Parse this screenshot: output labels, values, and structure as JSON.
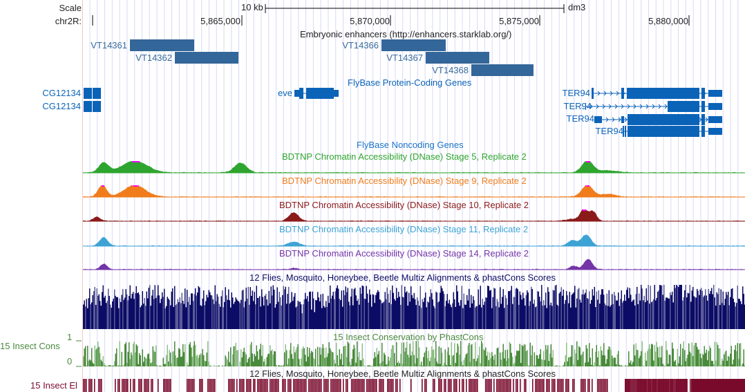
{
  "ruler": {
    "scale_label": "Scale",
    "scale_bar_text": "10 kb",
    "assembly": "dm3",
    "chrom_label": "chr2R:",
    "ticks": [
      "5,865,000",
      "5,870,000",
      "5,875,000",
      "5,880,000"
    ]
  },
  "tracks": {
    "enhancers": {
      "title": "Embryonic enhancers (http://enhancers.starklab.org/)",
      "color": "#336699",
      "items": [
        {
          "name": "VT14361",
          "start": 5861242,
          "end": 5863400
        },
        {
          "name": "VT14362",
          "start": 5862750,
          "end": 5864884
        },
        {
          "name": "VT14366",
          "start": 5869686,
          "end": 5871844
        },
        {
          "name": "VT14367",
          "start": 5871171,
          "end": 5873306
        },
        {
          "name": "VT14368",
          "start": 5872702,
          "end": 5874790
        }
      ]
    },
    "protein_coding": {
      "title": "FlyBase Protein-Coding Genes",
      "color": "#0b63b8",
      "genes": [
        {
          "name": "CG12134"
        },
        {
          "name": "CG12134"
        },
        {
          "name": "eve"
        },
        {
          "name": "TER94"
        },
        {
          "name": "TER94"
        },
        {
          "name": "TER94"
        },
        {
          "name": "TER94"
        }
      ]
    },
    "noncoding": {
      "title": "FlyBase Noncoding Genes",
      "color": "#1a73c9"
    },
    "dnase": [
      {
        "title": "BDTNP Chromatin Accessibility (DNase) Stage 5, Replicate 2",
        "color": "#2ea52e"
      },
      {
        "title": "BDTNP Chromatin Accessibility (DNase) Stage 9, Replicate 2",
        "color": "#f07c1c"
      },
      {
        "title": "BDTNP Chromatin Accessibility (DNase) Stage 10, Replicate 2",
        "color": "#8b1a1a"
      },
      {
        "title": "BDTNP Chromatin Accessibility (DNase) Stage 11, Replicate 2",
        "color": "#3da3d4"
      },
      {
        "title": "BDTNP Chromatin Accessibility (DNase) Stage 14, Replicate 2",
        "color": "#7434a8"
      }
    ],
    "multiz": {
      "title": "12 Flies, Mosquito, Honeybee, Beetle Multiz Alignments & phastCons Scores",
      "color": "#0c0c66"
    },
    "phastcons": {
      "title": "15 Insect Conservation by PhastCons",
      "side_label": "15 Insect Cons",
      "ymax": "1",
      "ymin": "0",
      "color": "#4a8a3c"
    },
    "elements": {
      "title": "12 Flies, Mosquito, Honeybee, Beetle Multiz Alignments & phastCons Scores",
      "side_label": "15 Insect El",
      "color": "#7a0a2c"
    }
  }
}
